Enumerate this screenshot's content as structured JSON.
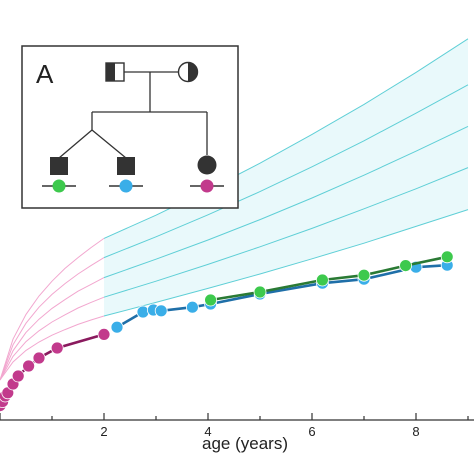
{
  "chart_data": {
    "type": "line",
    "title": "",
    "xlabel": "age (years)",
    "ylabel": "",
    "xlim": [
      0,
      9.0
    ],
    "ylim": [
      0,
      100
    ],
    "x_ticks": [
      0,
      1,
      2,
      3,
      4,
      5,
      6,
      7,
      8,
      9
    ],
    "x_tick_labels": [
      "",
      "",
      "2",
      "",
      "4",
      "",
      "6",
      "",
      "8",
      ""
    ],
    "grid": false,
    "legend": "none",
    "reference_bands": [
      {
        "segment": "0-2",
        "color": "#f2a7cf",
        "x": [
          0,
          0.25,
          0.5,
          0.75,
          1.0,
          1.25,
          1.5,
          1.75,
          2.0
        ],
        "curves": [
          [
            10,
            14.5,
            17.4,
            19.5,
            21.2,
            22.6,
            23.9,
            25.0,
            26.0
          ],
          [
            10,
            15.9,
            19.6,
            22.3,
            24.5,
            26.3,
            28.0,
            29.4,
            30.7
          ],
          [
            10,
            17.3,
            21.9,
            25.2,
            27.9,
            30.1,
            32.2,
            33.9,
            35.6
          ],
          [
            10,
            18.8,
            24.2,
            28.2,
            31.4,
            34.1,
            36.5,
            38.6,
            40.6
          ],
          [
            10,
            20.2,
            26.4,
            31.0,
            34.7,
            37.9,
            40.6,
            43.1,
            45.4
          ]
        ]
      },
      {
        "segment": "2-9",
        "color": "#5fcfd6",
        "fill": "#e9f9fb",
        "x": [
          2,
          3,
          4,
          5,
          6,
          7,
          8,
          9
        ],
        "curves": [
          [
            26.0,
            29.4,
            32.9,
            36.5,
            40.3,
            44.2,
            48.4,
            52.6
          ],
          [
            30.7,
            34.7,
            38.9,
            43.3,
            47.9,
            52.8,
            57.8,
            63.1
          ],
          [
            35.6,
            40.2,
            45.0,
            50.1,
            55.5,
            61.2,
            67.2,
            73.4
          ],
          [
            40.6,
            45.8,
            51.3,
            57.1,
            63.3,
            69.8,
            76.7,
            83.8
          ],
          [
            45.4,
            51.2,
            57.5,
            64.2,
            71.4,
            78.9,
            86.9,
            95.3
          ]
        ]
      }
    ],
    "series": [
      {
        "name": "",
        "color": "#c23a8c",
        "stroke": "#8a1a5e",
        "points": [
          [
            0.0,
            3.6
          ],
          [
            0.05,
            4.6
          ],
          [
            0.1,
            6.0
          ],
          [
            0.15,
            6.8
          ],
          [
            0.25,
            9.0
          ],
          [
            0.35,
            11.0
          ],
          [
            0.55,
            13.5
          ],
          [
            0.75,
            15.5
          ],
          [
            1.1,
            18.0
          ],
          [
            2.0,
            21.4
          ]
        ]
      },
      {
        "name": "",
        "color": "#3aaee8",
        "stroke": "#1f6fa8",
        "points": [
          [
            2.25,
            23.2
          ],
          [
            2.75,
            27.0
          ],
          [
            2.95,
            27.5
          ],
          [
            3.1,
            27.3
          ],
          [
            3.7,
            28.2
          ],
          [
            4.05,
            29.0
          ],
          [
            5.0,
            31.5
          ],
          [
            6.2,
            34.2
          ],
          [
            7.0,
            35.2
          ],
          [
            8.0,
            38.2
          ],
          [
            8.6,
            38.7
          ]
        ]
      },
      {
        "name": "",
        "color": "#3dc94d",
        "stroke": "#2a7a34",
        "points": [
          [
            4.05,
            30.0
          ],
          [
            5.0,
            32.0
          ],
          [
            6.2,
            35.0
          ],
          [
            7.0,
            36.2
          ],
          [
            7.8,
            38.6
          ],
          [
            8.6,
            40.8
          ]
        ]
      }
    ],
    "inset": {
      "label": "A",
      "father_symbol": "square-left-half-filled",
      "mother_symbol": "circle-right-half-filled",
      "children": [
        {
          "symbol": "square-filled",
          "marker_color": "#3dc94d"
        },
        {
          "symbol": "square-filled",
          "marker_color": "#3aaee8"
        },
        {
          "symbol": "circle-filled",
          "marker_color": "#c23a8c"
        }
      ],
      "note": ""
    }
  }
}
